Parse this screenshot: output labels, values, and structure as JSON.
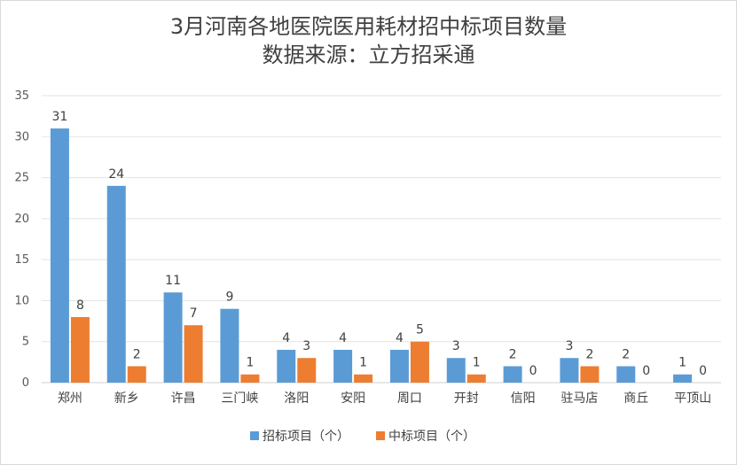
{
  "chart_data": {
    "type": "bar",
    "title": "3月河南各地医院医用耗材招中标项目数量",
    "subtitle": "数据来源：立方招采通",
    "categories": [
      "郑州",
      "新乡",
      "许昌",
      "三门峡",
      "洛阳",
      "安阳",
      "周口",
      "开封",
      "信阳",
      "驻马店",
      "商丘",
      "平顶山"
    ],
    "series": [
      {
        "name": "招标项目（个）",
        "color": "#5b9bd5",
        "values": [
          31,
          24,
          11,
          9,
          4,
          4,
          4,
          3,
          2,
          3,
          2,
          1
        ]
      },
      {
        "name": "中标项目（个）",
        "color": "#ed7d31",
        "values": [
          8,
          2,
          7,
          1,
          3,
          1,
          5,
          1,
          0,
          2,
          0,
          0
        ]
      }
    ],
    "ylim": [
      0,
      35
    ],
    "yticks": [
      0,
      5,
      10,
      15,
      20,
      25,
      30,
      35
    ],
    "grid": true,
    "legend_position": "bottom"
  }
}
